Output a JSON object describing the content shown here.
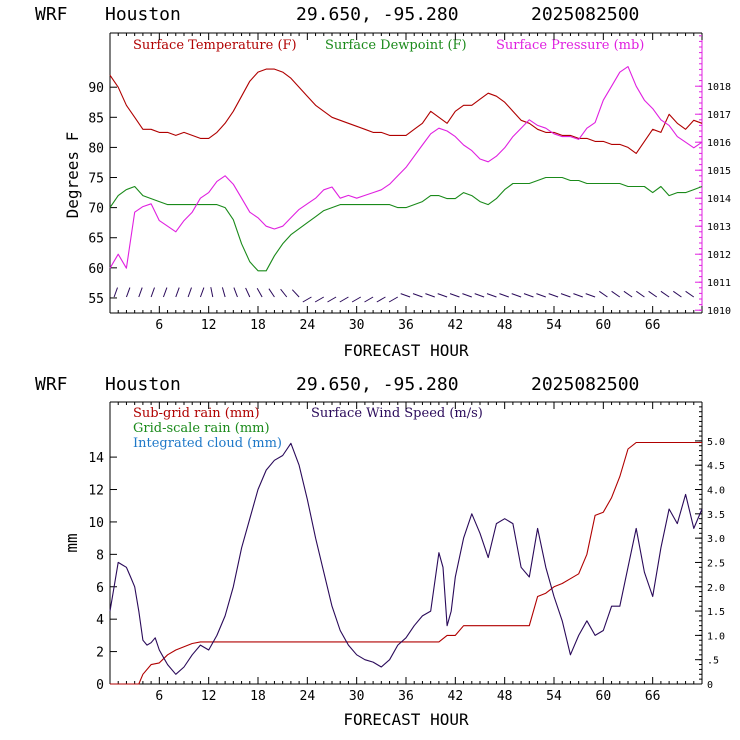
{
  "header": {
    "model": "WRF",
    "location": "Houston",
    "coords": "29.650, -95.280",
    "run": "2025082500"
  },
  "colors": {
    "temperature": "#b00000",
    "dewpoint": "#1a8a1a",
    "pressure": "#e020e0",
    "subgrid": "#b00000",
    "gridscale": "#1a8a1a",
    "cloud": "#1e78c8",
    "wind": "#2a0a5a",
    "right_axis": "#e020e0"
  },
  "chart_data": [
    {
      "type": "line",
      "xlabel": "FORECAST HOUR",
      "ylabel": "Degrees F",
      "xlim": [
        0,
        72
      ],
      "ylim": [
        52.5,
        99
      ],
      "xticks": [
        "6",
        "12",
        "18",
        "24",
        "30",
        "36",
        "42",
        "48",
        "54",
        "60",
        "66"
      ],
      "yticks": [
        "55",
        "60",
        "65",
        "70",
        "75",
        "80",
        "85",
        "90"
      ],
      "y2lim": [
        1009.9,
        1019.9
      ],
      "y2ticks": [
        "1010",
        "1011",
        "1012",
        "1013",
        "1014",
        "1015",
        "1016",
        "1017",
        "1018"
      ],
      "series": [
        {
          "name": "Surface Temperature (F)",
          "axis": "left",
          "x": [
            0,
            1,
            2,
            3,
            4,
            5,
            6,
            7,
            8,
            9,
            10,
            11,
            12,
            13,
            14,
            15,
            16,
            17,
            18,
            19,
            20,
            21,
            22,
            23,
            24,
            25,
            26,
            27,
            28,
            29,
            30,
            31,
            32,
            33,
            34,
            35,
            36,
            37,
            38,
            39,
            40,
            41,
            42,
            43,
            44,
            45,
            46,
            47,
            48,
            49,
            50,
            51,
            52,
            53,
            54,
            55,
            56,
            57,
            58,
            59,
            60,
            61,
            62,
            63,
            64,
            65,
            66,
            67,
            68,
            69,
            70,
            71,
            72
          ],
          "values": [
            92,
            90,
            87,
            85,
            83,
            83,
            82.5,
            82.5,
            82,
            82.5,
            82,
            81.5,
            81.5,
            82.5,
            84,
            86,
            88.5,
            91,
            92.5,
            93,
            93,
            92.5,
            91.5,
            90,
            88.5,
            87,
            86,
            85,
            84.5,
            84,
            83.5,
            83,
            82.5,
            82.5,
            82,
            82,
            82,
            83,
            84,
            86,
            85,
            84,
            86,
            87,
            87,
            88,
            89,
            88.5,
            87.5,
            86,
            84.5,
            84,
            83,
            82.5,
            82.5,
            82,
            82,
            81.5,
            81.5,
            81,
            81,
            80.5,
            80.5,
            80,
            79,
            81,
            83,
            82.5,
            85.5,
            84,
            83,
            84.5,
            84
          ]
        },
        {
          "name": "Surface Dewpoint (F)",
          "axis": "left",
          "x": [
            0,
            1,
            2,
            3,
            4,
            5,
            6,
            7,
            8,
            9,
            10,
            11,
            12,
            13,
            14,
            15,
            16,
            17,
            18,
            19,
            20,
            21,
            22,
            23,
            24,
            25,
            26,
            27,
            28,
            29,
            30,
            31,
            32,
            33,
            34,
            35,
            36,
            37,
            38,
            39,
            40,
            41,
            42,
            43,
            44,
            45,
            46,
            47,
            48,
            49,
            50,
            51,
            52,
            53,
            54,
            55,
            56,
            57,
            58,
            59,
            60,
            61,
            62,
            63,
            64,
            65,
            66,
            67,
            68,
            69,
            70,
            71,
            72
          ],
          "values": [
            70,
            72,
            73,
            73.5,
            72,
            71.5,
            71,
            70.5,
            70.5,
            70.5,
            70.5,
            70.5,
            70.5,
            70.5,
            70,
            68,
            64,
            61,
            59.5,
            59.5,
            62,
            64,
            65.5,
            66.5,
            67.5,
            68.5,
            69.5,
            70,
            70.5,
            70.5,
            70.5,
            70.5,
            70.5,
            70.5,
            70.5,
            70,
            70,
            70.5,
            71,
            72,
            72,
            71.5,
            71.5,
            72.5,
            72,
            71,
            70.5,
            71.5,
            73,
            74,
            74,
            74,
            74.5,
            75,
            75,
            75,
            74.5,
            74.5,
            74,
            74,
            74,
            74,
            74,
            73.5,
            73.5,
            73.5,
            72.5,
            73.5,
            72,
            72.5,
            72.5,
            73,
            73.5
          ]
        },
        {
          "name": "Surface Pressure (mb)",
          "axis": "right",
          "x": [
            0,
            1,
            2,
            3,
            4,
            5,
            6,
            7,
            8,
            9,
            10,
            11,
            12,
            13,
            14,
            15,
            16,
            17,
            18,
            19,
            20,
            21,
            22,
            23,
            24,
            25,
            26,
            27,
            28,
            29,
            30,
            31,
            32,
            33,
            34,
            35,
            36,
            37,
            38,
            39,
            40,
            41,
            42,
            43,
            44,
            45,
            46,
            47,
            48,
            49,
            50,
            51,
            52,
            53,
            54,
            55,
            56,
            57,
            58,
            59,
            60,
            61,
            62,
            63,
            64,
            65,
            66,
            67,
            68,
            69,
            70,
            71,
            72
          ],
          "values": [
            1011.5,
            1012,
            1011.5,
            1013.5,
            1013.7,
            1013.8,
            1013.2,
            1013.0,
            1012.8,
            1013.2,
            1013.5,
            1014.0,
            1014.2,
            1014.6,
            1014.8,
            1014.5,
            1014.0,
            1013.5,
            1013.3,
            1013.0,
            1012.9,
            1013.0,
            1013.3,
            1013.6,
            1013.8,
            1014.0,
            1014.3,
            1014.4,
            1014.0,
            1014.1,
            1014.0,
            1014.1,
            1014.2,
            1014.3,
            1014.5,
            1014.8,
            1015.1,
            1015.5,
            1015.9,
            1016.3,
            1016.5,
            1016.4,
            1016.2,
            1015.9,
            1015.7,
            1015.4,
            1015.3,
            1015.5,
            1015.8,
            1016.2,
            1016.5,
            1016.8,
            1016.6,
            1016.5,
            1016.3,
            1016.2,
            1016.2,
            1016.1,
            1016.5,
            1016.7,
            1017.5,
            1018.0,
            1018.5,
            1018.7,
            1018.0,
            1017.5,
            1017.2,
            1016.8,
            1016.6,
            1016.2,
            1016.0,
            1015.8,
            1016.0
          ]
        }
      ]
    },
    {
      "type": "line",
      "xlabel": "FORECAST HOUR",
      "ylabel": "mm",
      "xlim": [
        0,
        72
      ],
      "ylim": [
        0,
        17.4
      ],
      "xticks": [
        "6",
        "12",
        "18",
        "24",
        "30",
        "36",
        "42",
        "48",
        "54",
        "60",
        "66"
      ],
      "yticks": [
        "0",
        "2",
        "4",
        "6",
        "8",
        "10",
        "12",
        "14"
      ],
      "y2lim": [
        0,
        5.8
      ],
      "y2ticks": [
        "0",
        ".5",
        "1.0",
        "1.5",
        "2.0",
        "2.5",
        "3.0",
        "3.5",
        "4.0",
        "4.5",
        "5.0"
      ],
      "series": [
        {
          "name": "Sub-grid rain (mm)",
          "axis": "left",
          "x": [
            0,
            3.5,
            4,
            5,
            6,
            7,
            8,
            9,
            10,
            11,
            12,
            36,
            37,
            40,
            41,
            42,
            43,
            51,
            52,
            53,
            54,
            55,
            56,
            57,
            58,
            59,
            60,
            61,
            62,
            63,
            64,
            72
          ],
          "values": [
            0,
            0,
            0.6,
            1.2,
            1.3,
            1.8,
            2.1,
            2.3,
            2.5,
            2.6,
            2.6,
            2.6,
            2.6,
            2.6,
            3.0,
            3.0,
            3.6,
            3.6,
            5.4,
            5.6,
            6.0,
            6.2,
            6.5,
            6.8,
            8.0,
            10.4,
            10.6,
            11.5,
            12.8,
            14.5,
            14.9,
            14.9
          ]
        },
        {
          "name": "Grid-scale rain (mm)",
          "axis": "left",
          "x": [],
          "values": []
        },
        {
          "name": "Integrated cloud (mm)",
          "axis": "left",
          "x": [],
          "values": []
        },
        {
          "name": "Surface Wind Speed (m/s)",
          "axis": "right",
          "x": [
            0,
            0.5,
            1,
            1.5,
            2,
            2.5,
            3,
            3.5,
            4,
            4.5,
            5,
            5.5,
            6,
            6.5,
            7,
            8,
            9,
            10,
            11,
            12,
            13,
            14,
            15,
            16,
            17,
            18,
            19,
            20,
            21,
            22,
            23,
            24,
            25,
            26,
            27,
            28,
            29,
            30,
            31,
            32,
            33,
            34,
            35,
            36,
            37,
            38,
            39,
            40,
            40.5,
            41,
            41.5,
            42,
            43,
            44,
            45,
            46,
            47,
            48,
            49,
            50,
            51,
            52,
            53,
            54,
            55,
            56,
            57,
            58,
            59,
            60,
            61,
            62,
            63,
            64,
            65,
            66,
            67,
            68,
            69,
            70,
            71,
            72
          ],
          "values": [
            1.5,
            2.0,
            2.5,
            2.45,
            2.4,
            2.2,
            2.0,
            1.5,
            0.9,
            0.8,
            0.85,
            0.95,
            0.7,
            0.55,
            0.4,
            0.2,
            0.35,
            0.6,
            0.8,
            0.7,
            1.0,
            1.4,
            2.0,
            2.8,
            3.4,
            4.0,
            4.4,
            4.6,
            4.7,
            4.95,
            4.5,
            3.8,
            3.0,
            2.3,
            1.6,
            1.1,
            0.8,
            0.6,
            0.5,
            0.45,
            0.35,
            0.5,
            0.8,
            0.95,
            1.2,
            1.4,
            1.5,
            2.7,
            2.4,
            1.2,
            1.5,
            2.2,
            3.0,
            3.5,
            3.1,
            2.6,
            3.3,
            3.4,
            3.3,
            2.4,
            2.2,
            3.2,
            2.4,
            1.8,
            1.3,
            0.6,
            1.0,
            1.3,
            1.0,
            1.1,
            1.6,
            1.6,
            2.4,
            3.2,
            2.3,
            1.8,
            2.8,
            3.6,
            3.3,
            3.9,
            3.2,
            3.6
          ]
        }
      ]
    }
  ]
}
